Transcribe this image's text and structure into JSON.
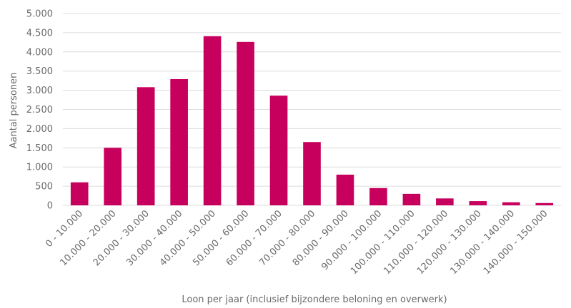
{
  "chart_data": {
    "type": "bar",
    "title": "",
    "xlabel": "Loon per jaar (inclusief bijzondere beloning en overwerk)",
    "ylabel": "Aantal personen",
    "categories": [
      "0 - 10.000",
      "10.000 - 20.000",
      "20.000 - 30.000",
      "30.000 - 40.000",
      "40.000 - 50.000",
      "50.000 - 60.000",
      "60.000 - 70.000",
      "70.000 - 80.000",
      "80.000 - 90.000",
      "90.000 - 100.000",
      "100.000 - 110.000",
      "110.000 - 120.000",
      "120.000 - 130.000",
      "130.000 - 140.000",
      "140.000 - 150.000"
    ],
    "values": [
      600,
      1500,
      3080,
      3290,
      4410,
      4260,
      2860,
      1650,
      800,
      450,
      300,
      180,
      110,
      80,
      60
    ],
    "ylim": [
      0,
      5000
    ],
    "yticks": [
      0,
      500,
      1000,
      1500,
      2000,
      2500,
      3000,
      3500,
      4000,
      4500,
      5000
    ],
    "ytick_labels": [
      "0",
      "500",
      "1.000",
      "1.500",
      "2.000",
      "2.500",
      "3.000",
      "3.500",
      "4.000",
      "4.500",
      "5.000"
    ],
    "grid": true,
    "legend": "none",
    "bar_color": "#c8005d",
    "grid_color": "#dcdcdc",
    "text_color": "#6b6b6b"
  }
}
